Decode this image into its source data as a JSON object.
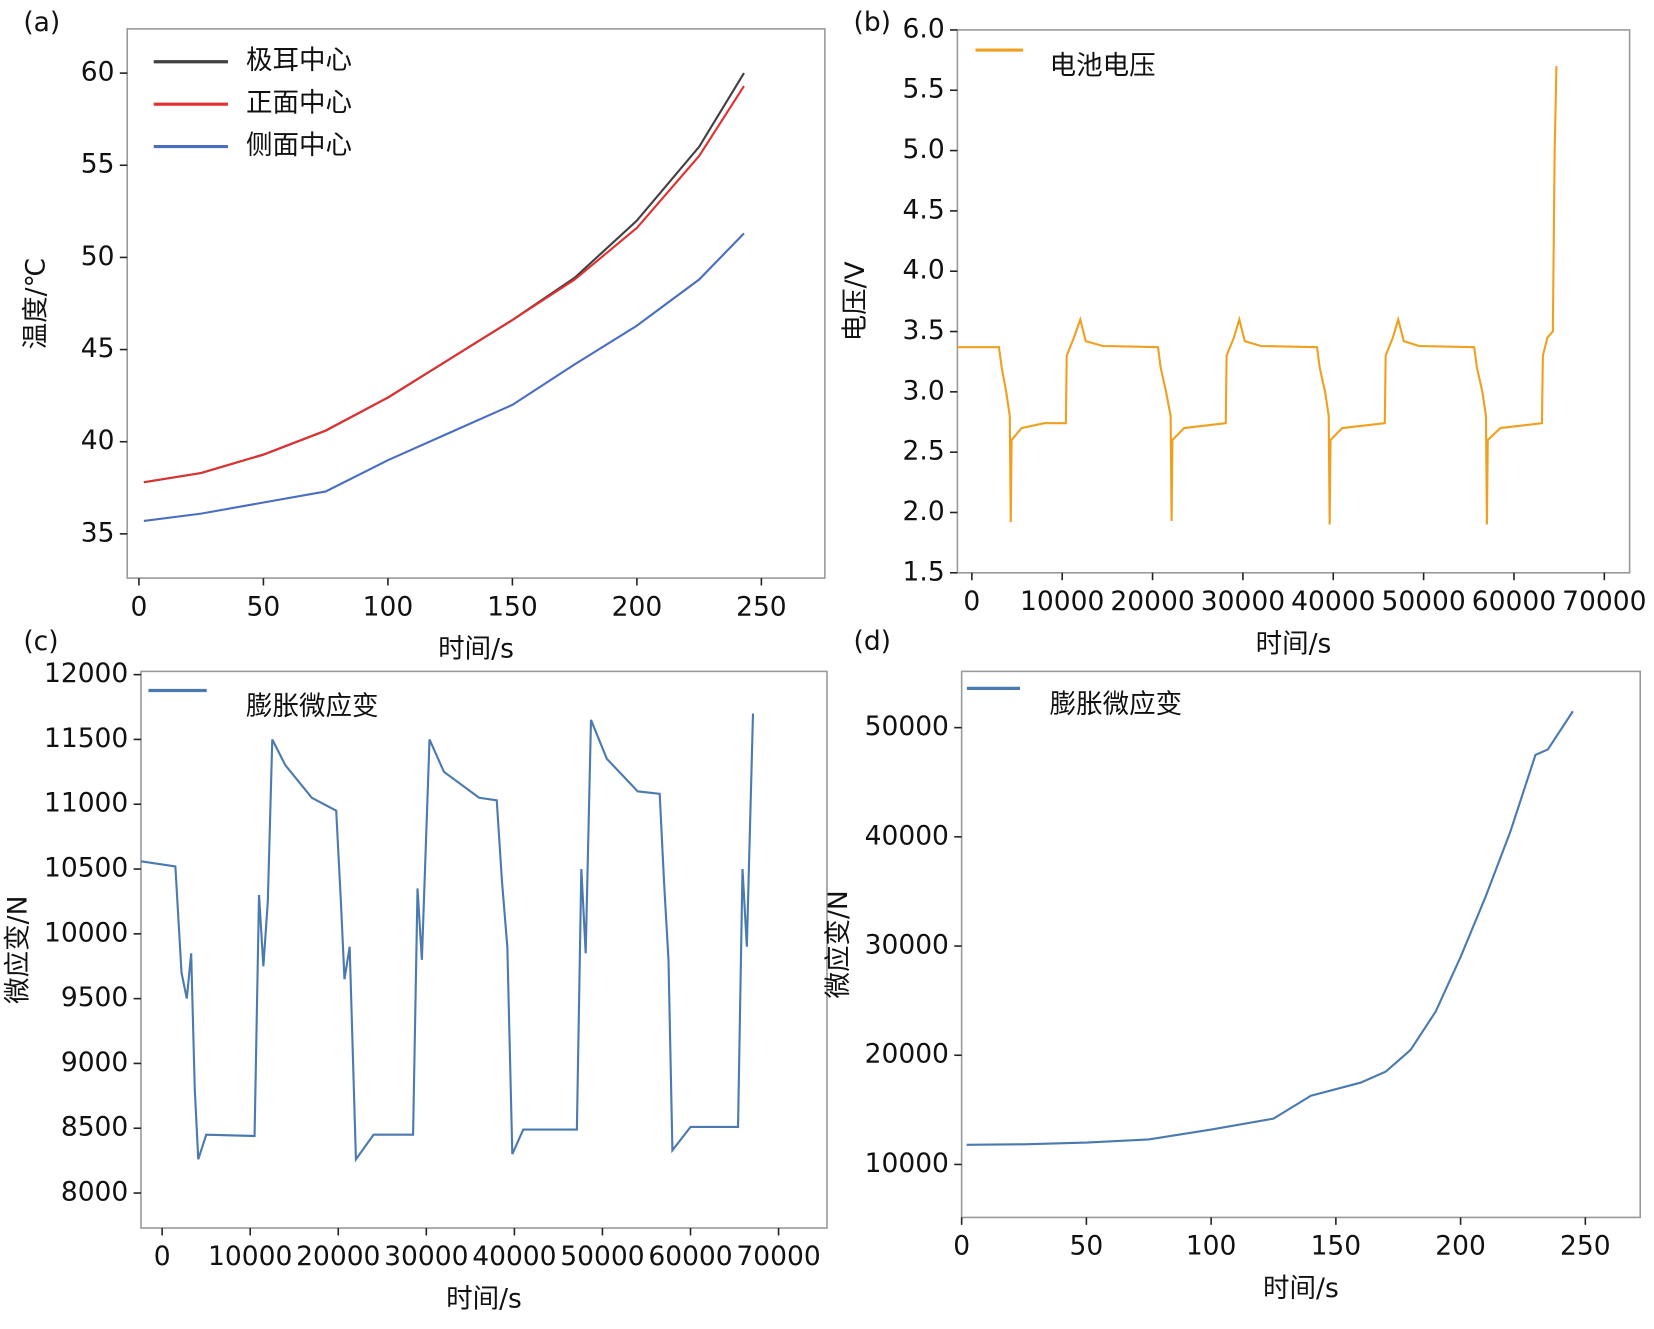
{
  "chart_data": [
    {
      "type": "line",
      "label": "(a)",
      "x_label": "时间/s",
      "y_label": "温度/℃",
      "legend": "top-left",
      "x": [
        2,
        25,
        50,
        75,
        100,
        125,
        150,
        175,
        200,
        225,
        243
      ],
      "series": [
        {
          "name": "极耳中心",
          "color": "#404040",
          "values": [
            37.8,
            38.3,
            39.3,
            40.6,
            42.4,
            44.5,
            46.6,
            48.9,
            52.0,
            56.0,
            60.0
          ]
        },
        {
          "name": "正面中心",
          "color": "#e03030",
          "values": [
            37.8,
            38.3,
            39.3,
            40.6,
            42.4,
            44.5,
            46.6,
            48.8,
            51.6,
            55.5,
            59.3
          ]
        },
        {
          "name": "侧面中心",
          "color": "#4a6fc0",
          "values": [
            35.7,
            36.1,
            36.7,
            37.3,
            39.0,
            40.5,
            42.0,
            44.2,
            46.3,
            48.8,
            51.3
          ]
        }
      ],
      "xlim": [
        -4.7,
        275.5
      ],
      "xticks": [
        0,
        50,
        100,
        150,
        200,
        250
      ],
      "ylim": [
        32.6,
        62.4
      ],
      "yticks": [
        35,
        40,
        45,
        50,
        55,
        60
      ]
    },
    {
      "type": "line",
      "label": "(b)",
      "x_label": "时间/s",
      "y_label": "电压/V",
      "legend": "top-left",
      "x": [
        -1600,
        3000,
        3300,
        3800,
        4200,
        4300,
        4400,
        5500,
        8000,
        10400,
        10500,
        11300,
        12000,
        12600,
        14500,
        20600,
        20900,
        21500,
        22000,
        22100,
        22200,
        23500,
        28100,
        28200,
        29000,
        29600,
        30200,
        32000,
        38200,
        38500,
        39100,
        39500,
        39600,
        39700,
        41000,
        45700,
        45800,
        46600,
        47200,
        47800,
        49500,
        55600,
        55900,
        56500,
        56900,
        57000,
        57100,
        58500,
        63100,
        63200,
        63700,
        64300,
        64500,
        64700
      ],
      "series": [
        {
          "name": "电池电压",
          "color": "#f0a020",
          "values": [
            3.37,
            3.37,
            3.2,
            3.0,
            2.8,
            1.92,
            2.6,
            2.7,
            2.74,
            2.74,
            3.3,
            3.45,
            3.6,
            3.42,
            3.38,
            3.37,
            3.2,
            3.0,
            2.8,
            1.93,
            2.6,
            2.7,
            2.74,
            3.3,
            3.45,
            3.6,
            3.42,
            3.38,
            3.37,
            3.2,
            3.0,
            2.8,
            1.9,
            2.6,
            2.7,
            2.74,
            3.3,
            3.45,
            3.6,
            3.42,
            3.38,
            3.37,
            3.2,
            3.0,
            2.8,
            1.9,
            2.6,
            2.7,
            2.74,
            3.3,
            3.45,
            3.5,
            5.0,
            5.7
          ]
        }
      ],
      "xlim": [
        -1600,
        72800
      ],
      "xticks": [
        0,
        10000,
        20000,
        30000,
        40000,
        50000,
        60000,
        70000
      ],
      "ylim": [
        1.5,
        6.0
      ],
      "yticks": [
        1.5,
        {
          "value": 2,
          "label": "2.0"
        },
        2.5,
        {
          "value": 3,
          "label": "3.0"
        },
        3.5,
        {
          "value": 4,
          "label": "4.0"
        },
        4.5,
        {
          "value": 5,
          "label": "5.0"
        },
        5.5,
        {
          "value": 6,
          "label": "6.0"
        }
      ]
    },
    {
      "type": "line",
      "label": "(c)",
      "x_label": "时间/s",
      "y_label": "微应变/N",
      "legend": "top-left",
      "x": [
        -2400,
        1500,
        2200,
        2800,
        3300,
        3700,
        4100,
        5000,
        10500,
        11000,
        11500,
        12000,
        12500,
        14000,
        17000,
        19760,
        20300,
        20700,
        21300,
        22000,
        24000,
        28500,
        29000,
        29500,
        30360,
        32000,
        36000,
        38000,
        38600,
        39200,
        39760,
        41000,
        47100,
        47600,
        48100,
        48700,
        50500,
        54000,
        56500,
        57000,
        57500,
        57950,
        60000,
        65400,
        65900,
        66400,
        67100
      ],
      "series": [
        {
          "name": "膨胀微应变",
          "color": "#4a7ab0",
          "values": [
            10560,
            10520,
            9700,
            9500,
            9850,
            8800,
            8260,
            8450,
            8440,
            10300,
            9750,
            10250,
            11500,
            11300,
            11050,
            10950,
            10250,
            9650,
            9900,
            8260,
            8450,
            8450,
            10350,
            9800,
            11500,
            11250,
            11050,
            11030,
            10400,
            9900,
            8300,
            8490,
            8490,
            10500,
            9850,
            11650,
            11350,
            11100,
            11080,
            10400,
            9800,
            8330,
            8510,
            8510,
            10500,
            9900,
            11700
          ]
        }
      ],
      "xlim": [
        -2400,
        75500
      ],
      "xticks": [
        0,
        10000,
        20000,
        30000,
        40000,
        50000,
        60000,
        70000
      ],
      "ylim": [
        7730,
        12025
      ],
      "yticks": [
        8000,
        8500,
        9000,
        9500,
        10000,
        10500,
        11000,
        11500,
        12000
      ]
    },
    {
      "type": "line",
      "label": "(d)",
      "x_label": "时间/s",
      "y_label": "微应变/N",
      "legend": "top-left",
      "x": [
        2,
        25,
        50,
        75,
        100,
        125,
        140,
        160,
        170,
        180,
        190,
        200,
        210,
        220,
        230,
        235,
        245
      ],
      "series": [
        {
          "name": "膨胀微应变",
          "color": "#4a7ab0",
          "values": [
            11800,
            11850,
            12000,
            12300,
            13200,
            14200,
            16300,
            17500,
            18500,
            20500,
            24000,
            29000,
            34500,
            40500,
            47500,
            48000,
            51500
          ]
        }
      ],
      "xlim": [
        0,
        272
      ],
      "xticks": [
        0,
        50,
        100,
        150,
        200,
        250
      ],
      "ylim": [
        5150,
        55150
      ],
      "yticks": [
        10000,
        20000,
        30000,
        40000,
        50000
      ]
    }
  ]
}
